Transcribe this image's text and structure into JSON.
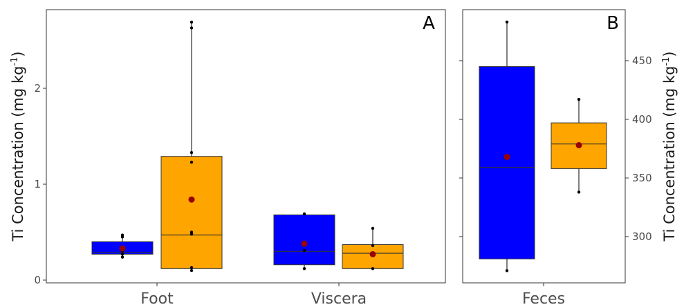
{
  "figure": {
    "colors": {
      "blue": "#0000FF",
      "orange": "#FFA500",
      "mean": "#990000",
      "points": "#000000"
    }
  },
  "chart_data": [
    {
      "panel": "A",
      "type": "box",
      "ylabel_main": "Ti Concentration (mg kg",
      "ylabel_sup": "-1",
      "ylabel_close": ")",
      "ylim": [
        0,
        2.8
      ],
      "yticks": [
        0,
        1,
        2
      ],
      "categories": [
        "Foot",
        "Viscera"
      ],
      "groups": [
        {
          "category": "Foot",
          "color": "blue",
          "min": 0.24,
          "q1": 0.27,
          "median": 0.29,
          "q3": 0.4,
          "max": 0.47,
          "mean": 0.33,
          "points": [
            0.24,
            0.27,
            0.3,
            0.33,
            0.45,
            0.47
          ]
        },
        {
          "category": "Foot",
          "color": "orange",
          "min": 0.1,
          "q1": 0.12,
          "median": 0.47,
          "q3": 1.29,
          "max": 2.69,
          "mean": 0.84,
          "points": [
            0.1,
            0.13,
            0.48,
            0.5,
            1.23,
            1.33,
            2.63,
            2.69
          ]
        },
        {
          "category": "Viscera",
          "color": "blue",
          "min": 0.12,
          "q1": 0.16,
          "median": 0.3,
          "q3": 0.68,
          "max": 0.69,
          "mean": 0.38,
          "points": [
            0.12,
            0.31,
            0.38,
            0.69
          ]
        },
        {
          "category": "Viscera",
          "color": "orange",
          "min": 0.12,
          "q1": 0.12,
          "median": 0.28,
          "q3": 0.37,
          "max": 0.54,
          "mean": 0.27,
          "points": [
            0.12,
            0.27,
            0.36,
            0.54
          ]
        }
      ]
    },
    {
      "panel": "B",
      "type": "box",
      "ylabel_main": "Ti Concentration (mg kg",
      "ylabel_sup": "-1",
      "ylabel_close": ")",
      "ylim": [
        262,
        494
      ],
      "yticks": [
        300,
        350,
        400,
        450
      ],
      "categories": [
        "Feces"
      ],
      "groups": [
        {
          "category": "Feces",
          "color": "blue",
          "min": 271,
          "q1": 281,
          "median": 359,
          "q3": 445,
          "max": 483,
          "mean": 368,
          "points": [
            271,
            483
          ]
        },
        {
          "category": "Feces",
          "color": "orange",
          "min": 338,
          "q1": 358,
          "median": 379,
          "q3": 397,
          "max": 417,
          "mean": 378,
          "points": [
            338,
            417
          ]
        }
      ]
    }
  ]
}
